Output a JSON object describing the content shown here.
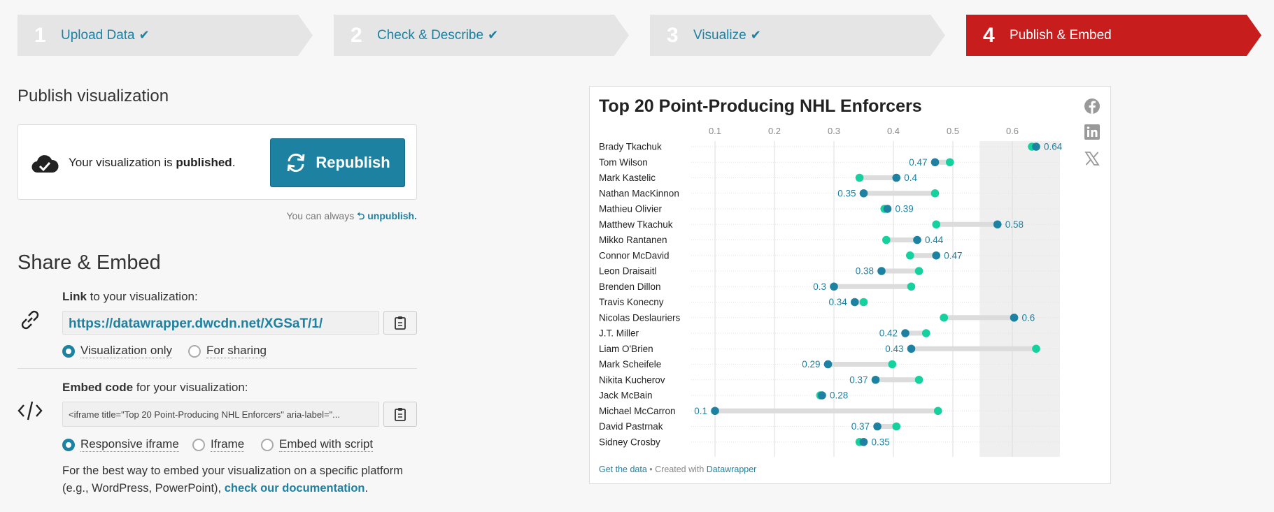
{
  "steps": [
    {
      "num": "1",
      "label": "Upload Data",
      "done": true
    },
    {
      "num": "2",
      "label": "Check & Describe",
      "done": true
    },
    {
      "num": "3",
      "label": "Visualize",
      "done": true
    },
    {
      "num": "4",
      "label": "Publish & Embed",
      "done": false
    }
  ],
  "publish": {
    "heading": "Publish visualization",
    "status_prefix": "Your visualization is ",
    "status_bold": "published",
    "status_suffix": ".",
    "republish_label": "Republish",
    "unpublish_prefix": "You can always ",
    "unpublish_link": "unpublish."
  },
  "share": {
    "heading": "Share & Embed",
    "link_label_bold": "Link",
    "link_label_rest": " to your visualization:",
    "url": "https://datawrapper.dwcdn.net/XGSaT/1/",
    "link_options": [
      "Visualization only",
      "For sharing"
    ],
    "embed_label_bold": "Embed code",
    "embed_label_rest": " for your visualization:",
    "embed_code": "<iframe title=\"Top 20 Point-Producing NHL Enforcers\" aria-label=\"...",
    "embed_options": [
      "Responsive iframe",
      "Iframe",
      "Embed with script"
    ],
    "help_text": "For the best way to embed your visualization on a specific platform (e.g., WordPress, PowerPoint), ",
    "help_link": "check our documentation",
    "help_end": "."
  },
  "colors": {
    "accent": "#1d81a2",
    "active_step": "#c71e1d",
    "dot_blue": "#1d81a2",
    "dot_green": "#15d19d"
  },
  "chart_data": {
    "type": "dot-range",
    "title": "Top 20 Point-Producing NHL Enforcers",
    "xticks": [
      0.1,
      0.2,
      0.3,
      0.4,
      0.5,
      0.6
    ],
    "xlim": [
      0.06,
      0.68
    ],
    "highlight_range": [
      0.545,
      0.68
    ],
    "rows": [
      {
        "name": "Brady Tkachuk",
        "blue": 0.64,
        "green": 0.633,
        "label": "0.64"
      },
      {
        "name": "Tom Wilson",
        "blue": 0.47,
        "green": 0.495,
        "label": "0.47"
      },
      {
        "name": "Mark Kastelic",
        "blue": 0.405,
        "green": 0.343,
        "label": "0.4"
      },
      {
        "name": "Nathan MacKinnon",
        "blue": 0.35,
        "green": 0.47,
        "label": "0.35"
      },
      {
        "name": "Mathieu Olivier",
        "blue": 0.39,
        "green": 0.385,
        "label": "0.39"
      },
      {
        "name": "Matthew Tkachuk",
        "blue": 0.575,
        "green": 0.472,
        "label": "0.58"
      },
      {
        "name": "Mikko Rantanen",
        "blue": 0.44,
        "green": 0.388,
        "label": "0.44"
      },
      {
        "name": "Connor McDavid",
        "blue": 0.472,
        "green": 0.428,
        "label": "0.47"
      },
      {
        "name": "Leon Draisaitl",
        "blue": 0.38,
        "green": 0.443,
        "label": "0.38"
      },
      {
        "name": "Brenden Dillon",
        "blue": 0.3,
        "green": 0.43,
        "label": "0.3"
      },
      {
        "name": "Travis Konecny",
        "blue": 0.335,
        "green": 0.35,
        "label": "0.34"
      },
      {
        "name": "Nicolas Deslauriers",
        "blue": 0.603,
        "green": 0.485,
        "label": "0.6"
      },
      {
        "name": "J.T. Miller",
        "blue": 0.42,
        "green": 0.455,
        "label": "0.42"
      },
      {
        "name": "Liam O'Brien",
        "blue": 0.43,
        "green": 0.64,
        "label": "0.43"
      },
      {
        "name": "Mark Scheifele",
        "blue": 0.29,
        "green": 0.398,
        "label": "0.29"
      },
      {
        "name": "Nikita Kucherov",
        "blue": 0.37,
        "green": 0.443,
        "label": "0.37"
      },
      {
        "name": "Jack McBain",
        "blue": 0.28,
        "green": 0.277,
        "label": "0.28"
      },
      {
        "name": "Michael McCarron",
        "blue": 0.1,
        "green": 0.475,
        "label": "0.1"
      },
      {
        "name": "David Pastrnak",
        "blue": 0.373,
        "green": 0.405,
        "label": "0.37"
      },
      {
        "name": "Sidney Crosby",
        "blue": 0.35,
        "green": 0.343,
        "label": "0.35"
      }
    ]
  },
  "chart_footer": {
    "get_data": "Get the data",
    "sep": " • Created with ",
    "dw": "Datawrapper"
  }
}
